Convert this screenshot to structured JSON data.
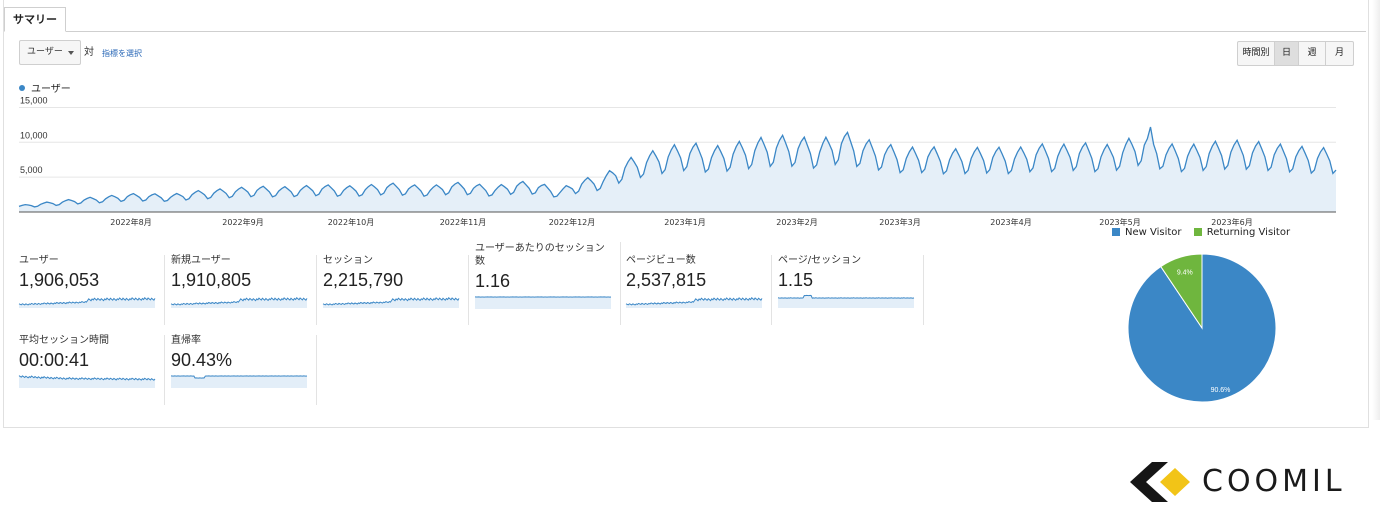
{
  "tabs": {
    "summary": "サマリー"
  },
  "controls": {
    "metric_select": "ユーザー",
    "vs_label": "対",
    "select_metric_link": "指標を選択",
    "granularity": [
      "時間別",
      "日",
      "週",
      "月"
    ],
    "active_granularity": "日"
  },
  "chart_data": [
    {
      "type": "line",
      "series": [
        {
          "name": "ユーザー"
        }
      ],
      "y_ticks": [
        "15,000",
        "10,000",
        "5,000"
      ],
      "ylim": [
        0,
        16500
      ],
      "x_ticks": [
        "2022年8月",
        "2022年9月",
        "2022年10月",
        "2022年11月",
        "2022年12月",
        "2023年1月",
        "2023年2月",
        "2023年3月",
        "2023年4月",
        "2023年5月",
        "2023年6月"
      ],
      "weekly_values": [
        800,
        1100,
        1400,
        1700,
        1900,
        2200,
        2200,
        2100,
        2500,
        2700,
        2900,
        3100,
        3000,
        3100,
        3300,
        3100,
        3200,
        3500,
        3300,
        3100,
        3600,
        3400,
        3100,
        3700,
        3500,
        2800,
        4000,
        4400,
        6300,
        7100,
        7900,
        8400,
        7800,
        8300,
        8800,
        9200,
        9100,
        8600,
        9800,
        8800,
        8200,
        7700,
        7900,
        7500,
        7700,
        7800,
        7600,
        8200,
        8000,
        8400,
        7900,
        8500,
        9600,
        8200,
        8000,
        8400,
        8600,
        8500,
        8200,
        7900,
        7700
      ],
      "grid": true,
      "legend": "top-left"
    },
    {
      "type": "pie",
      "categories": [
        "New Visitor",
        "Returning Visitor"
      ],
      "values": [
        90.6,
        9.4
      ],
      "slice_labels": [
        "90.6%",
        "9.4%"
      ],
      "colors": [
        "#3b87c6",
        "#6fb63e"
      ],
      "legend": "top"
    }
  ],
  "scorecards": [
    {
      "label": "ユーザー",
      "value": "1,906,053",
      "trend": "rising"
    },
    {
      "label": "新規ユーザー",
      "value": "1,910,805",
      "trend": "rising"
    },
    {
      "label": "セッション",
      "value": "2,215,790",
      "trend": "rising"
    },
    {
      "label": "ユーザーあたりのセッション数",
      "value": "1.16",
      "trend": "flat"
    },
    {
      "label": "ページビュー数",
      "value": "2,537,815",
      "trend": "rising"
    },
    {
      "label": "ページ/セッション",
      "value": "1.15",
      "trend": "flat-bump"
    },
    {
      "label": "平均セッション時間",
      "value": "00:00:41",
      "trend": "falling"
    },
    {
      "label": "直帰率",
      "value": "90.43%",
      "trend": "flat-dip"
    }
  ],
  "brand": {
    "name": "COOMIL"
  },
  "colors": {
    "series": "#3b87c6",
    "area_fill": "#e5eff8",
    "spark_fill": "#e3eef8",
    "grid": "#e6e6e6",
    "link": "#2766b6"
  },
  "icons": {
    "dropdown": "caret-down-icon",
    "brand_logo": "coomil-logo-icon"
  }
}
